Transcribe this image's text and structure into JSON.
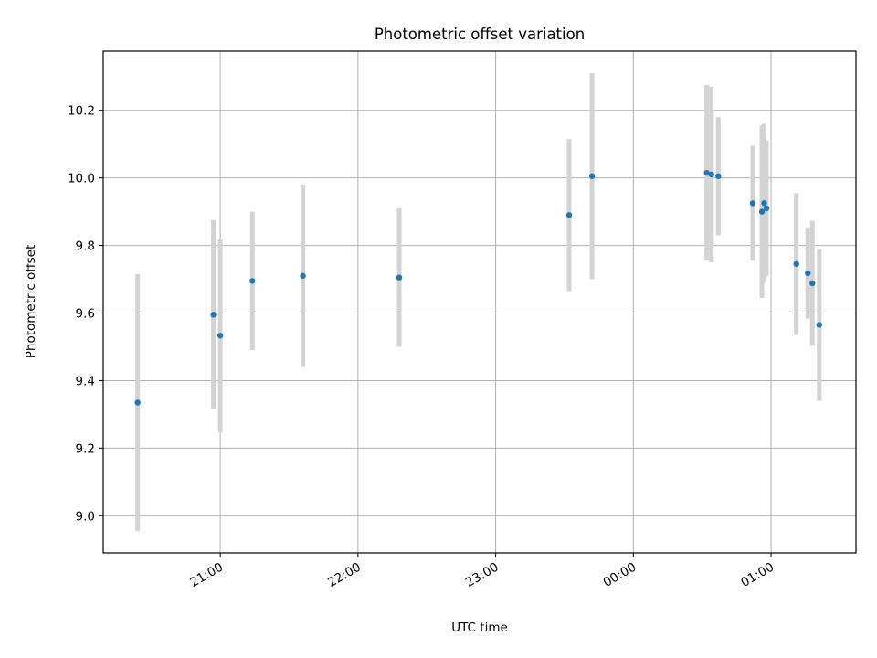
{
  "chart_data": {
    "type": "scatter",
    "title": "Photometric offset variation",
    "xlabel": "UTC time",
    "ylabel": "Photometric offset",
    "xlim": [
      "20:09",
      "01:37"
    ],
    "ylim": [
      8.89,
      10.375
    ],
    "xticks": [
      "21:00",
      "22:00",
      "23:00",
      "00:00",
      "01:00"
    ],
    "yticks": [
      "9.0",
      "9.2",
      "9.4",
      "9.6",
      "9.8",
      "10.0",
      "10.2"
    ],
    "grid": true,
    "colors": {
      "marker": "#1f77b4",
      "errorbar": "#d3d3d3",
      "grid": "#b0b0b0"
    },
    "points": [
      {
        "t": "20:24",
        "y": 9.335,
        "err": 0.38
      },
      {
        "t": "20:57",
        "y": 9.595,
        "err": 0.28
      },
      {
        "t": "21:00",
        "y": 9.533,
        "err": 0.285
      },
      {
        "t": "21:14",
        "y": 9.695,
        "err": 0.205
      },
      {
        "t": "21:36",
        "y": 9.71,
        "err": 0.27
      },
      {
        "t": "22:18",
        "y": 9.705,
        "err": 0.205
      },
      {
        "t": "23:32",
        "y": 9.89,
        "err": 0.225
      },
      {
        "t": "23:42",
        "y": 10.005,
        "err": 0.305
      },
      {
        "t": "00:32",
        "y": 10.015,
        "err": 0.26
      },
      {
        "t": "00:34",
        "y": 10.01,
        "err": 0.26
      },
      {
        "t": "00:37",
        "y": 10.005,
        "err": 0.175
      },
      {
        "t": "00:52",
        "y": 9.925,
        "err": 0.17
      },
      {
        "t": "00:56",
        "y": 9.9,
        "err": 0.255
      },
      {
        "t": "00:57",
        "y": 9.925,
        "err": 0.235
      },
      {
        "t": "00:58",
        "y": 9.91,
        "err": 0.2
      },
      {
        "t": "01:11",
        "y": 9.745,
        "err": 0.21
      },
      {
        "t": "01:16",
        "y": 9.718,
        "err": 0.135
      },
      {
        "t": "01:18",
        "y": 9.688,
        "err": 0.185
      },
      {
        "t": "01:21",
        "y": 9.565,
        "err": 0.225
      }
    ]
  }
}
